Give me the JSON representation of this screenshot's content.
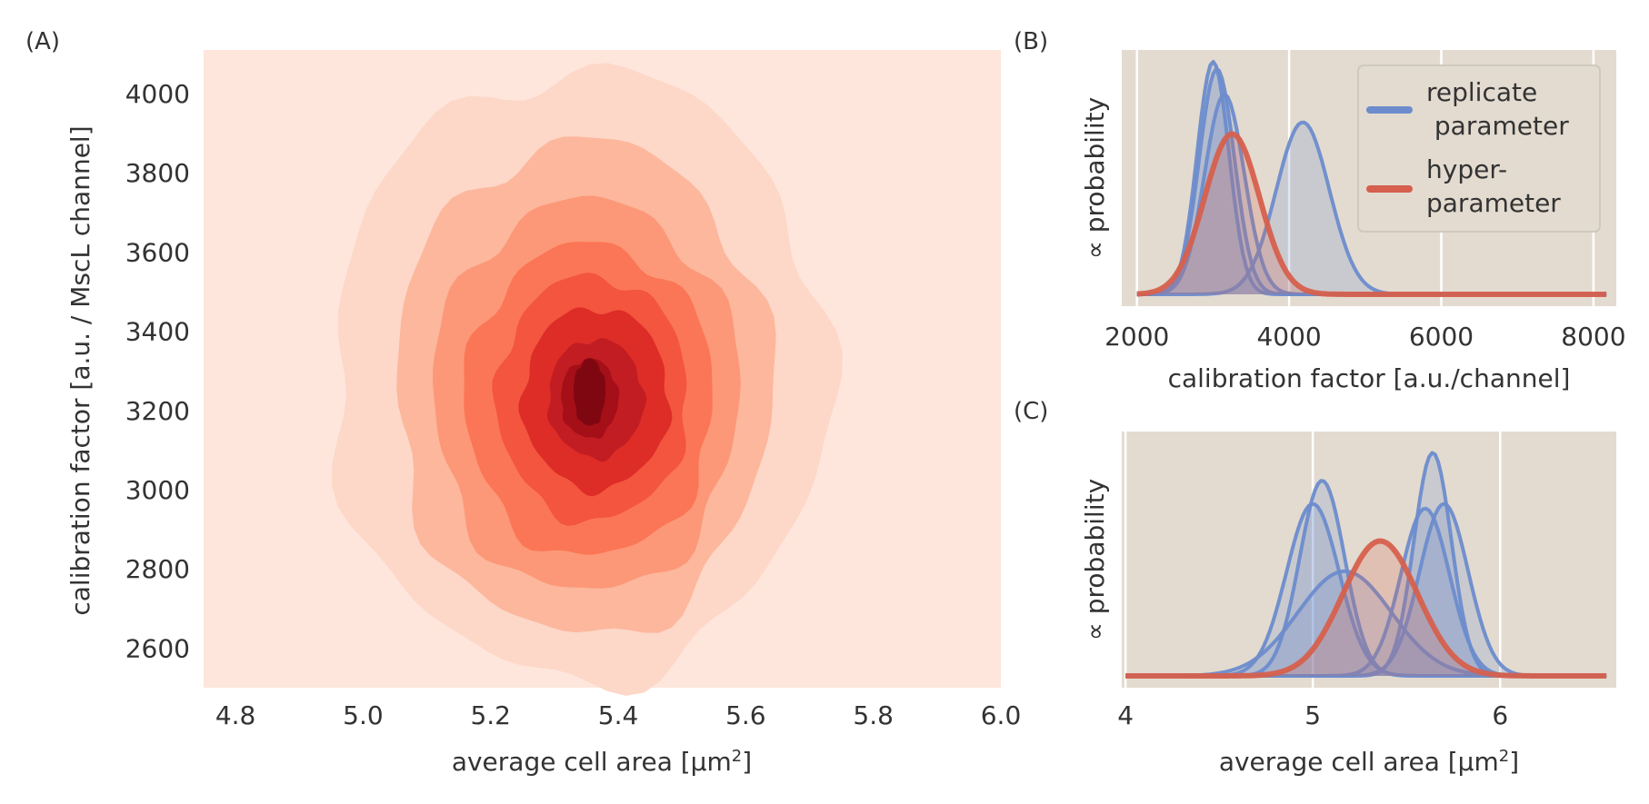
{
  "chart_data": [
    {
      "panel_label": "(A)",
      "type": "contour",
      "xlabel": "average cell area [μm",
      "xlabel_sup": "2",
      "xlabel_end": "]",
      "ylabel": "calibration factor [a.u. / MscL channel]",
      "xlim": [
        4.75,
        6.0
      ],
      "ylim": [
        2500,
        4110
      ],
      "xticks": [
        4.8,
        5.0,
        5.2,
        5.4,
        5.6,
        5.8,
        6.0
      ],
      "xtick_labels": [
        "4.8",
        "5.0",
        "5.2",
        "5.4",
        "5.6",
        "5.8",
        "6.0"
      ],
      "yticks": [
        2600,
        2800,
        3000,
        3200,
        3400,
        3600,
        3800,
        4000
      ],
      "ytick_labels": [
        "2600",
        "2800",
        "3000",
        "3200",
        "3400",
        "3600",
        "3800",
        "4000"
      ],
      "levels": [
        {
          "color": "#fee6dc",
          "x": [
            4.75,
            6.0
          ],
          "y": [
            2500,
            4110
          ],
          "full": true
        },
        {
          "color": "#fdd7c7",
          "x": [
            4.95,
            5.73
          ],
          "y": [
            2520,
            4060
          ]
        },
        {
          "color": "#fcb79d",
          "x": [
            5.05,
            5.64
          ],
          "y": [
            2630,
            3880
          ]
        },
        {
          "color": "#fc9877",
          "x": [
            5.11,
            5.59
          ],
          "y": [
            2740,
            3730
          ]
        },
        {
          "color": "#fb7656",
          "x": [
            5.16,
            5.55
          ],
          "y": [
            2830,
            3620
          ]
        },
        {
          "color": "#f3553f",
          "x": [
            5.21,
            5.51
          ],
          "y": [
            2920,
            3540
          ]
        },
        {
          "color": "#de2c27",
          "x": [
            5.25,
            5.48
          ],
          "y": [
            3000,
            3460
          ]
        },
        {
          "color": "#c11d23",
          "x": [
            5.29,
            5.44
          ],
          "y": [
            3080,
            3380
          ]
        },
        {
          "color": "#a50f17",
          "x": [
            5.31,
            5.4
          ],
          "y": [
            3130,
            3330
          ]
        },
        {
          "color": "#7f0711",
          "x": [
            5.33,
            5.38
          ],
          "y": [
            3160,
            3330
          ]
        }
      ],
      "center": {
        "x": 5.36,
        "y": 3250
      }
    },
    {
      "panel_label": "(B)",
      "type": "line",
      "xlabel": "calibration factor [a.u./channel]",
      "ylabel": "∝ probability",
      "xlim": [
        1800,
        8300
      ],
      "xticks": [
        2000,
        4000,
        6000,
        8000
      ],
      "xtick_labels": [
        "2000",
        "4000",
        "6000",
        "8000"
      ],
      "grid": true,
      "legend_placement": "top-right",
      "legend": [
        {
          "label": "replicate",
          "label2": " parameter",
          "color": "#6d8ccc"
        },
        {
          "label": "hyper-",
          "label2": "parameter",
          "color": "#d6604d"
        }
      ],
      "series": [
        {
          "kind": "replicate",
          "mu": 3000,
          "sigma": 210,
          "height": 1.0
        },
        {
          "kind": "replicate",
          "mu": 3050,
          "sigma": 230,
          "height": 0.97
        },
        {
          "kind": "replicate",
          "mu": 3150,
          "sigma": 260,
          "height": 0.86
        },
        {
          "kind": "replicate",
          "mu": 4180,
          "sigma": 350,
          "height": 0.74
        },
        {
          "kind": "hyper",
          "mu": 3250,
          "sigma": 360,
          "height": 0.69
        }
      ]
    },
    {
      "panel_label": "(C)",
      "type": "line",
      "xlabel": "average cell area [μm",
      "xlabel_sup": "2",
      "xlabel_end": "]",
      "ylabel": "∝ probability",
      "xlim": [
        3.98,
        6.62
      ],
      "xticks": [
        4,
        5,
        6
      ],
      "xtick_labels": [
        "4",
        "5",
        "6"
      ],
      "grid": true,
      "series": [
        {
          "kind": "replicate",
          "mu": 5.05,
          "sigma": 0.12,
          "height": 0.84
        },
        {
          "kind": "replicate",
          "mu": 5.0,
          "sigma": 0.14,
          "height": 0.74
        },
        {
          "kind": "replicate",
          "mu": 5.17,
          "sigma": 0.25,
          "height": 0.45
        },
        {
          "kind": "replicate",
          "mu": 5.64,
          "sigma": 0.1,
          "height": 0.96
        },
        {
          "kind": "replicate",
          "mu": 5.7,
          "sigma": 0.13,
          "height": 0.74
        },
        {
          "kind": "replicate",
          "mu": 5.6,
          "sigma": 0.13,
          "height": 0.72
        },
        {
          "kind": "hyper",
          "mu": 5.36,
          "sigma": 0.2,
          "height": 0.58
        }
      ]
    }
  ],
  "colors": {
    "replicate": "#6d8ccc",
    "hyper": "#d6604d",
    "panel_bg": "#e3dbd0",
    "grid": "#ffffff"
  }
}
